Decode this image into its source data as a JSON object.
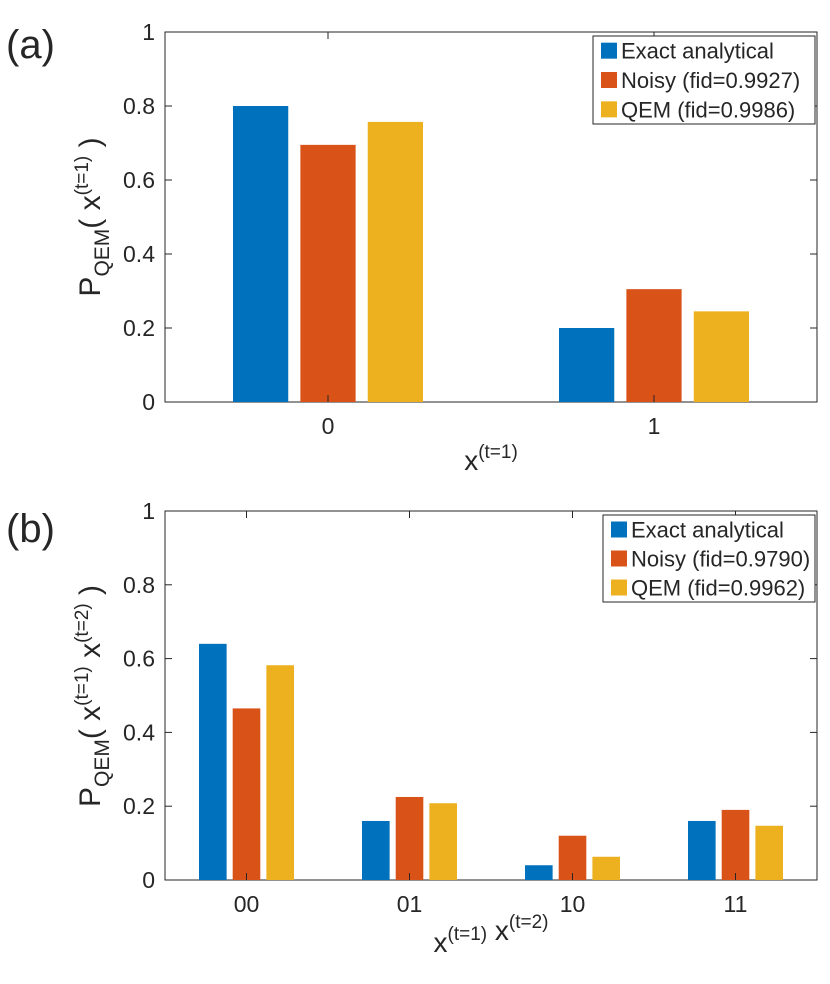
{
  "chart_data": [
    {
      "panel": "(a)",
      "type": "bar",
      "categories": [
        "0",
        "1"
      ],
      "series": [
        {
          "name": "Exact analytical",
          "values": [
            0.8,
            0.2
          ]
        },
        {
          "name": "Noisy (fid=0.9927)",
          "values": [
            0.695,
            0.305
          ]
        },
        {
          "name": "QEM (fid=0.9986)",
          "values": [
            0.757,
            0.245
          ]
        }
      ],
      "xlabel": {
        "base": "x",
        "sup": "(t=1)"
      },
      "ylabel": {
        "base": "P",
        "sub": "QEM",
        "sup_parts": [
          {
            "base": "( x",
            "sup": "(t=1)"
          }
        ],
        "close": " )"
      },
      "ylim": [
        0,
        1
      ],
      "yticks": [
        "0",
        "0.2",
        "0.4",
        "0.6",
        "0.8",
        "1"
      ],
      "legend_position": "top-right"
    },
    {
      "panel": "(b)",
      "type": "bar",
      "categories": [
        "00",
        "01",
        "10",
        "11"
      ],
      "series": [
        {
          "name": "Exact analytical",
          "values": [
            0.64,
            0.16,
            0.04,
            0.16
          ]
        },
        {
          "name": "Noisy (fid=0.9790)",
          "values": [
            0.465,
            0.225,
            0.12,
            0.19
          ]
        },
        {
          "name": "QEM (fid=0.9962)",
          "values": [
            0.582,
            0.208,
            0.063,
            0.147
          ]
        }
      ],
      "xlabel": {
        "parts": [
          {
            "base": "x",
            "sup": "(t=1)"
          },
          {
            "base": " x",
            "sup": "(t=2)"
          }
        ]
      },
      "ylabel": {
        "base": "P",
        "sub": "QEM",
        "sup_parts": [
          {
            "base": "( x",
            "sup": "(t=1)"
          },
          {
            "base": " x",
            "sup": "(t=2)"
          }
        ],
        "close": " )"
      },
      "ylim": [
        0,
        1
      ],
      "yticks": [
        "0",
        "0.2",
        "0.4",
        "0.6",
        "0.8",
        "1"
      ],
      "legend_position": "top-right"
    }
  ],
  "colors": [
    "#0072BD",
    "#D95319",
    "#EDB120"
  ]
}
